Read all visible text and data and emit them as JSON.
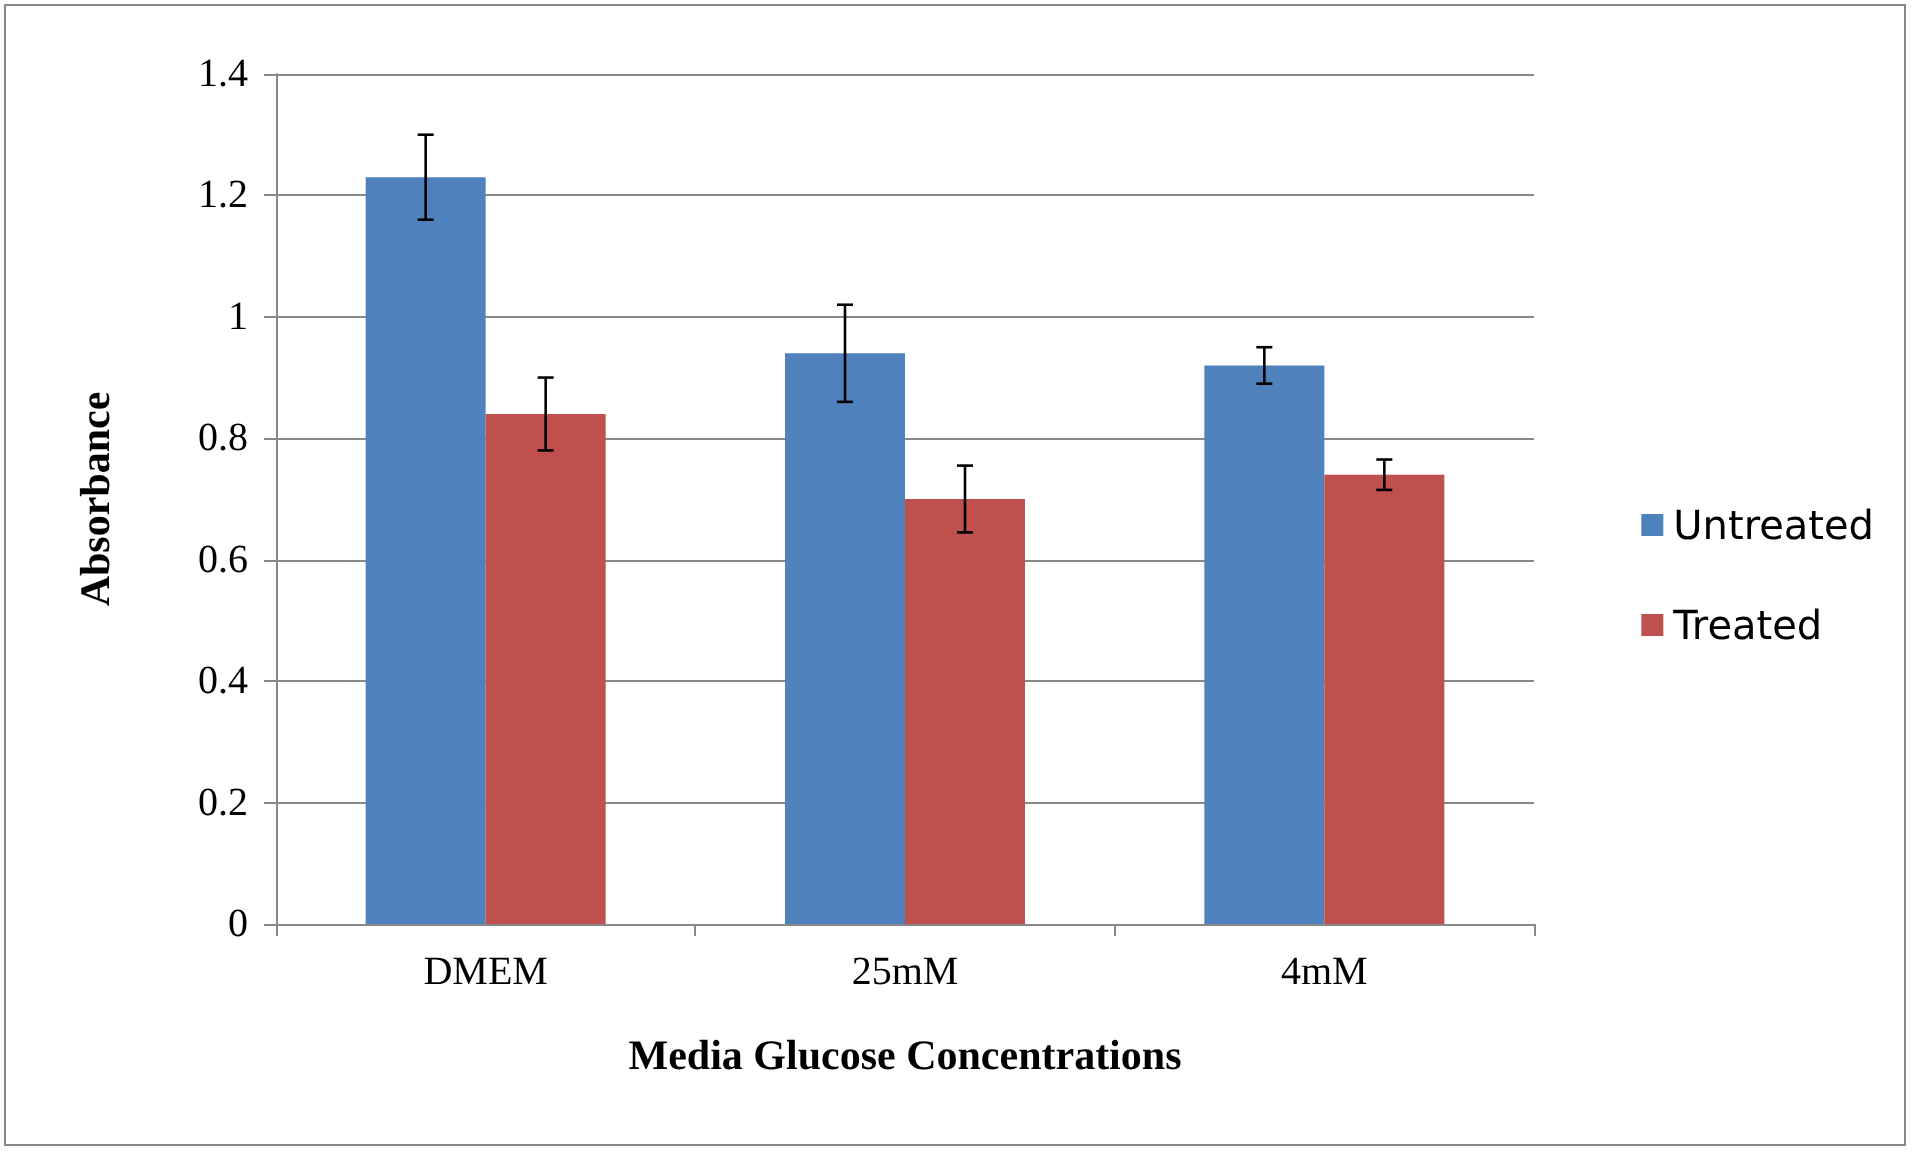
{
  "chart_data": {
    "type": "bar",
    "xlabel": "Media Glucose Concentrations",
    "ylabel": "Absorbance",
    "categories": [
      "DMEM",
      "25mM",
      "4mM"
    ],
    "series": [
      {
        "name": "Untreated",
        "color": "#4f81bd",
        "values": [
          1.23,
          0.94,
          0.92
        ],
        "errors": [
          0.07,
          0.08,
          0.03
        ]
      },
      {
        "name": "Treated",
        "color": "#c0504d",
        "values": [
          0.84,
          0.7,
          0.74
        ],
        "errors": [
          0.06,
          0.055,
          0.025
        ]
      }
    ],
    "ylim": [
      0,
      1.4
    ],
    "yticks": [
      0,
      0.2,
      0.4,
      0.6,
      0.8,
      1,
      1.2,
      1.4
    ],
    "grid": "y",
    "legend": "right"
  }
}
